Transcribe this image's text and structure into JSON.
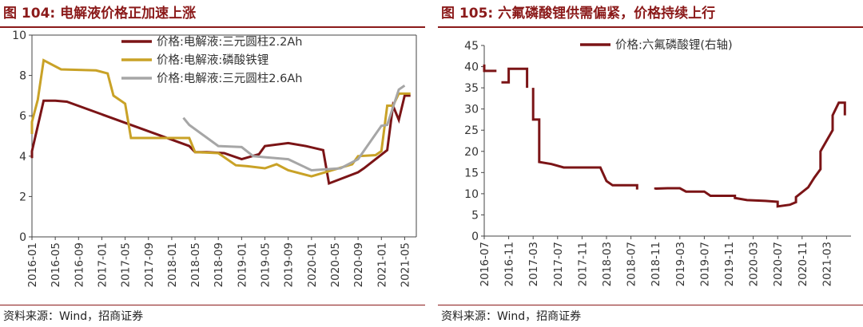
{
  "left": {
    "figure_title": "图 104: 电解液价格正加速上涨",
    "source": "资料来源：Wind，招商证券"
  },
  "right": {
    "figure_title": "图 105: 六氟磷酸锂供需偏紧，价格持续上行",
    "source": "资料来源：Wind，招商证券"
  },
  "colors": {
    "title_accent": "#8b1a1a",
    "series_dark_red": "#7b1416",
    "series_gold": "#c9a227",
    "series_gray": "#a6a6a6"
  },
  "chart_data": [
    {
      "type": "line",
      "line_style": "step",
      "x_unit": "month",
      "x_range": [
        "2016-01",
        "2021-07"
      ],
      "xticks": [
        "2016-01",
        "2016-05",
        "2016-09",
        "2017-01",
        "2017-05",
        "2017-09",
        "2018-01",
        "2018-05",
        "2018-09",
        "2019-01",
        "2019-05",
        "2019-09",
        "2020-01",
        "2020-05",
        "2020-09",
        "2021-01",
        "2021-05"
      ],
      "yticks": [
        "0",
        "2",
        "4",
        "6",
        "8",
        "10"
      ],
      "ylim": [
        0,
        10
      ],
      "grid": false,
      "legend_position": "top-right",
      "series": [
        {
          "name": "价格:电解液:三元圆柱2.2Ah",
          "color": "#7b1416",
          "points": [
            [
              "2016-01",
              3.9
            ],
            [
              "2016-01",
              4.25
            ],
            [
              "2016-03",
              6.75
            ],
            [
              "2016-05",
              6.75
            ],
            [
              "2016-07",
              6.7
            ],
            [
              "2018-04",
              4.5
            ],
            [
              "2018-05",
              4.2
            ],
            [
              "2018-07",
              4.2
            ],
            [
              "2018-10",
              4.15
            ],
            [
              "2019-01",
              3.85
            ],
            [
              "2019-04",
              4.1
            ],
            [
              "2019-05",
              4.5
            ],
            [
              "2019-09",
              4.65
            ],
            [
              "2019-12",
              4.5
            ],
            [
              "2020-03",
              4.3
            ],
            [
              "2020-04",
              2.65
            ],
            [
              "2020-09",
              3.2
            ],
            [
              "2020-10",
              3.4
            ],
            [
              "2021-02",
              4.3
            ],
            [
              "2021-03",
              6.5
            ],
            [
              "2021-04",
              5.8
            ],
            [
              "2021-05",
              7.0
            ],
            [
              "2021-06",
              7.0
            ]
          ]
        },
        {
          "name": "价格:电解液:磷酸铁锂",
          "color": "#c9a227",
          "points": [
            [
              "2016-01",
              5.1
            ],
            [
              "2016-01",
              5.7
            ],
            [
              "2016-02",
              6.8
            ],
            [
              "2016-03",
              8.75
            ],
            [
              "2016-06",
              8.3
            ],
            [
              "2016-12",
              8.25
            ],
            [
              "2017-02",
              8.1
            ],
            [
              "2017-03",
              7.0
            ],
            [
              "2017-05",
              6.6
            ],
            [
              "2017-06",
              4.9
            ],
            [
              "2018-01",
              4.9
            ],
            [
              "2018-04",
              4.9
            ],
            [
              "2018-05",
              4.2
            ],
            [
              "2018-09",
              4.15
            ],
            [
              "2018-12",
              3.55
            ],
            [
              "2019-02",
              3.5
            ],
            [
              "2019-05",
              3.4
            ],
            [
              "2019-07",
              3.6
            ],
            [
              "2019-09",
              3.3
            ],
            [
              "2020-01",
              3.0
            ],
            [
              "2020-08",
              3.6
            ],
            [
              "2020-09",
              4.0
            ],
            [
              "2020-12",
              4.05
            ],
            [
              "2021-01",
              4.25
            ],
            [
              "2021-02",
              6.5
            ],
            [
              "2021-03",
              6.5
            ],
            [
              "2021-04",
              7.1
            ],
            [
              "2021-06",
              7.1
            ]
          ]
        },
        {
          "name": "价格:电解液:三元圆柱2.6Ah",
          "color": "#a6a6a6",
          "points": [
            [
              "2018-03",
              5.9
            ],
            [
              "2018-04",
              5.55
            ],
            [
              "2018-09",
              4.5
            ],
            [
              "2019-01",
              4.45
            ],
            [
              "2019-03",
              4.0
            ],
            [
              "2019-05",
              3.95
            ],
            [
              "2019-09",
              3.85
            ],
            [
              "2020-01",
              3.3
            ],
            [
              "2020-06",
              3.4
            ],
            [
              "2020-09",
              3.85
            ],
            [
              "2021-01",
              5.5
            ],
            [
              "2021-02",
              5.55
            ],
            [
              "2021-04",
              7.3
            ],
            [
              "2021-05",
              7.5
            ]
          ]
        }
      ]
    },
    {
      "type": "line",
      "line_style": "step",
      "x_unit": "month",
      "x_range": [
        "2016-07",
        "2021-07"
      ],
      "xticks": [
        "2016-07",
        "2016-11",
        "2017-03",
        "2017-07",
        "2017-11",
        "2018-03",
        "2018-07",
        "2018-11",
        "2019-03",
        "2019-07",
        "2019-11",
        "2020-03",
        "2020-07",
        "2020-11",
        "2021-03"
      ],
      "yticks": [
        "0",
        "5",
        "10",
        "15",
        "20",
        "25",
        "30",
        "35",
        "40",
        "45"
      ],
      "ylim": [
        0,
        45
      ],
      "grid": false,
      "legend_position": "top-center",
      "series": [
        {
          "name": "价格:六氟磷酸锂(右轴)",
          "color": "#7b1416",
          "segments": [
            [
              [
                "2016-07",
                40.5
              ],
              [
                "2016-07",
                39.0
              ],
              [
                "2016-09",
                39.0
              ]
            ],
            [
              [
                "2016-10",
                36.0
              ],
              [
                "2016-10",
                36.3
              ],
              [
                "2016-11",
                36.3
              ],
              [
                "2016-11",
                39.5
              ],
              [
                "2017-02",
                39.5
              ],
              [
                "2017-02",
                35.0
              ]
            ],
            [
              [
                "2017-03",
                35.0
              ],
              [
                "2017-03",
                27.5
              ],
              [
                "2017-04",
                27.5
              ],
              [
                "2017-04",
                17.5
              ],
              [
                "2017-06",
                17.0
              ],
              [
                "2017-08",
                16.2
              ],
              [
                "2018-02",
                16.2
              ],
              [
                "2018-03",
                13.0
              ],
              [
                "2018-04",
                12.0
              ],
              [
                "2018-08",
                12.0
              ],
              [
                "2018-08",
                11.0
              ]
            ],
            [
              [
                "2018-11",
                11.0
              ],
              [
                "2018-11",
                11.2
              ],
              [
                "2019-01",
                11.3
              ],
              [
                "2019-03",
                11.3
              ],
              [
                "2019-04",
                10.5
              ],
              [
                "2019-07",
                10.5
              ],
              [
                "2019-08",
                9.5
              ],
              [
                "2019-12",
                9.5
              ],
              [
                "2019-12",
                9.0
              ],
              [
                "2020-02",
                8.5
              ],
              [
                "2020-05",
                8.3
              ],
              [
                "2020-07",
                8.1
              ],
              [
                "2020-07",
                7.0
              ],
              [
                "2020-09",
                7.4
              ],
              [
                "2020-10",
                8.0
              ],
              [
                "2020-10",
                9.2
              ],
              [
                "2020-12",
                11.5
              ],
              [
                "2021-01",
                13.8
              ],
              [
                "2021-02",
                15.8
              ],
              [
                "2021-02",
                20.0
              ],
              [
                "2021-03",
                22.5
              ],
              [
                "2021-04",
                25.0
              ],
              [
                "2021-04",
                28.5
              ],
              [
                "2021-05",
                31.5
              ],
              [
                "2021-06",
                31.5
              ],
              [
                "2021-06",
                28.5
              ]
            ]
          ]
        }
      ]
    }
  ]
}
